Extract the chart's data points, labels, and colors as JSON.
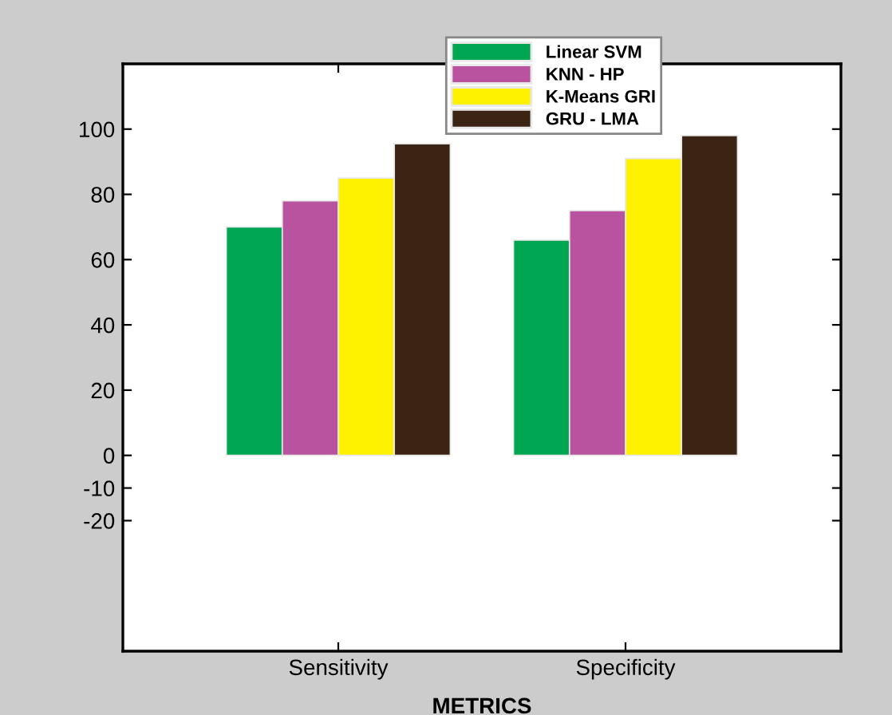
{
  "chart_data": {
    "type": "bar",
    "xlabel": "METRICS",
    "categories": [
      "Sensitivity",
      "Specificity"
    ],
    "series": [
      {
        "name": "Linear SVM",
        "color": "#00a651",
        "values": [
          70,
          66
        ]
      },
      {
        "name": "KNN - HP",
        "color": "#b9529f",
        "values": [
          78,
          75
        ]
      },
      {
        "name": "K-Means GRI",
        "color": "#fff200",
        "values": [
          85,
          91
        ]
      },
      {
        "name": "GRU - LMA",
        "color": "#3c2415",
        "values": [
          95.5,
          98
        ]
      }
    ],
    "ylim": [
      -60,
      120
    ],
    "yticks": [
      -20,
      -10,
      0,
      20,
      40,
      60,
      80,
      100
    ],
    "grid": false,
    "legend": "top"
  }
}
